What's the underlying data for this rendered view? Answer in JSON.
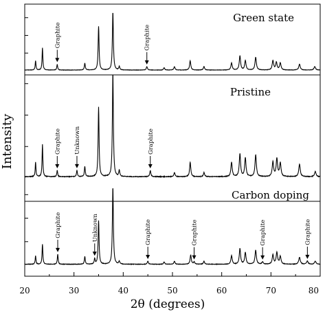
{
  "chart_data": {
    "type": "line",
    "xlabel": "2θ (degrees)",
    "ylabel": "Intensity",
    "xlim": [
      20,
      80
    ],
    "x_ticks": [
      20,
      30,
      40,
      50,
      60,
      70,
      80
    ],
    "panels": [
      {
        "name": "Green state",
        "peaks": [
          [
            22.2,
            16
          ],
          [
            23.6,
            38
          ],
          [
            26.6,
            10
          ],
          [
            32.2,
            12
          ],
          [
            35.0,
            75
          ],
          [
            37.9,
            100
          ],
          [
            39.2,
            6
          ],
          [
            44.8,
            6
          ],
          [
            48.3,
            4
          ],
          [
            50.4,
            6
          ],
          [
            53.6,
            16
          ],
          [
            56.4,
            6
          ],
          [
            62.0,
            12
          ],
          [
            63.7,
            24
          ],
          [
            64.8,
            16
          ],
          [
            66.9,
            22
          ],
          [
            70.4,
            16
          ],
          [
            71.1,
            13
          ],
          [
            71.9,
            12
          ],
          [
            75.8,
            10
          ],
          [
            78.9,
            6
          ]
        ],
        "annotations": [
          {
            "text": "Graphite",
            "x": 26.6
          },
          {
            "text": "Graphite",
            "x": 44.8
          }
        ]
      },
      {
        "name": "Pristine",
        "peaks": [
          [
            22.2,
            14
          ],
          [
            23.6,
            31
          ],
          [
            26.6,
            6
          ],
          [
            30.6,
            6
          ],
          [
            32.2,
            10
          ],
          [
            35.0,
            67
          ],
          [
            37.9,
            100
          ],
          [
            39.2,
            6
          ],
          [
            45.5,
            6
          ],
          [
            50.4,
            4
          ],
          [
            53.6,
            14
          ],
          [
            56.4,
            4
          ],
          [
            62.0,
            14
          ],
          [
            63.7,
            22
          ],
          [
            64.8,
            18
          ],
          [
            66.9,
            21
          ],
          [
            70.4,
            14
          ],
          [
            71.2,
            17
          ],
          [
            71.9,
            13
          ],
          [
            75.8,
            12
          ],
          [
            79.0,
            5
          ]
        ],
        "annotations": [
          {
            "text": "Graphite",
            "x": 26.6
          },
          {
            "text": "Unknown",
            "x": 30.6
          },
          {
            "text": "Graphite",
            "x": 45.5
          }
        ]
      },
      {
        "name": "Carbon doping",
        "peaks": [
          [
            22.2,
            11
          ],
          [
            23.6,
            26
          ],
          [
            26.7,
            13
          ],
          [
            32.2,
            10
          ],
          [
            34.2,
            7
          ],
          [
            35.0,
            56
          ],
          [
            37.9,
            100
          ],
          [
            39.2,
            4
          ],
          [
            45.0,
            4
          ],
          [
            48.3,
            3
          ],
          [
            50.4,
            4
          ],
          [
            53.7,
            12
          ],
          [
            54.4,
            3
          ],
          [
            56.4,
            4
          ],
          [
            62.0,
            11
          ],
          [
            63.7,
            20
          ],
          [
            64.8,
            15
          ],
          [
            66.9,
            18
          ],
          [
            68.3,
            3
          ],
          [
            70.4,
            12
          ],
          [
            71.2,
            15
          ],
          [
            71.9,
            10
          ],
          [
            75.8,
            9
          ],
          [
            77.4,
            4
          ],
          [
            79.0,
            4
          ]
        ],
        "annotations": [
          {
            "text": "Graphite",
            "x": 26.7
          },
          {
            "text": "Unknown",
            "x": 34.2
          },
          {
            "text": "Graphite",
            "x": 45.0
          },
          {
            "text": "Graphite",
            "x": 54.4
          },
          {
            "text": "Graphite",
            "x": 68.3
          },
          {
            "text": "Graphite",
            "x": 77.4
          }
        ]
      }
    ],
    "grid": false,
    "line_color": "#000000"
  }
}
